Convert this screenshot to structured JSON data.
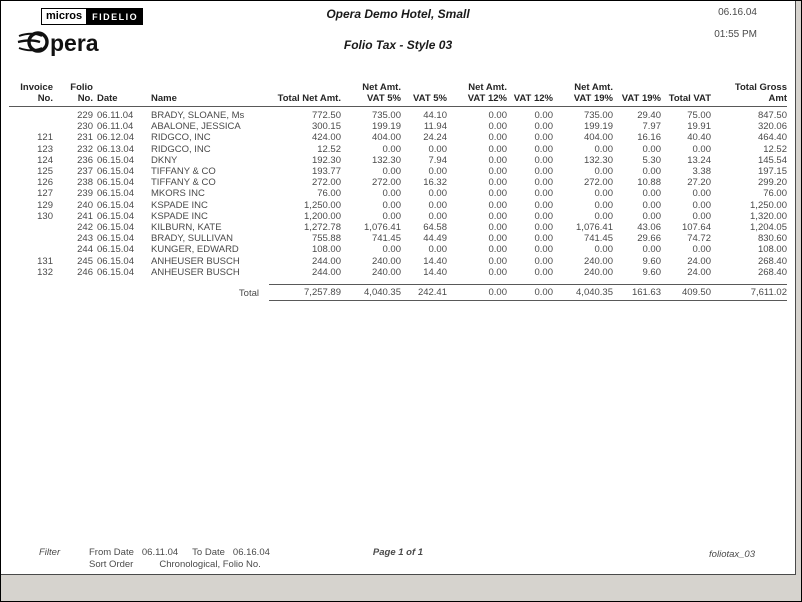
{
  "window": {
    "background": "#d6d3ce"
  },
  "header": {
    "logo": {
      "micros": "micros",
      "fidelio": "FIDELIO",
      "opera_text": "pera"
    },
    "hotel_name": "Opera Demo Hotel, Small",
    "report_title": "Folio Tax - Style 03",
    "date": "06.16.04",
    "time": "01:55 PM"
  },
  "table": {
    "columns": [
      {
        "top": "",
        "label": "Invoice No."
      },
      {
        "top": "",
        "label": "Folio No."
      },
      {
        "top": "",
        "label": "Date"
      },
      {
        "top": "",
        "label": "Name"
      },
      {
        "top": "",
        "label": "Total Net Amt."
      },
      {
        "top": "Net Amt.",
        "label": "VAT 5%"
      },
      {
        "top": "",
        "label": "VAT 5%"
      },
      {
        "top": "Net Amt.",
        "label": "VAT 12%"
      },
      {
        "top": "",
        "label": "VAT 12%"
      },
      {
        "top": "Net Amt.",
        "label": "VAT 19%"
      },
      {
        "top": "",
        "label": "VAT 19%"
      },
      {
        "top": "",
        "label": "Total VAT"
      },
      {
        "top": "",
        "label": "Total Gross Amt"
      }
    ],
    "rows": [
      [
        "",
        "229",
        "06.11.04",
        "BRADY, SLOANE, Ms",
        "772.50",
        "735.00",
        "44.10",
        "0.00",
        "0.00",
        "735.00",
        "29.40",
        "75.00",
        "847.50"
      ],
      [
        "",
        "230",
        "06.11.04",
        "ABALONE, JESSICA",
        "300.15",
        "199.19",
        "11.94",
        "0.00",
        "0.00",
        "199.19",
        "7.97",
        "19.91",
        "320.06"
      ],
      [
        "121",
        "231",
        "06.12.04",
        "RIDGCO, INC",
        "424.00",
        "404.00",
        "24.24",
        "0.00",
        "0.00",
        "404.00",
        "16.16",
        "40.40",
        "464.40"
      ],
      [
        "123",
        "232",
        "06.13.04",
        "RIDGCO, INC",
        "12.52",
        "0.00",
        "0.00",
        "0.00",
        "0.00",
        "0.00",
        "0.00",
        "0.00",
        "12.52"
      ],
      [
        "124",
        "236",
        "06.15.04",
        "DKNY",
        "192.30",
        "132.30",
        "7.94",
        "0.00",
        "0.00",
        "132.30",
        "5.30",
        "13.24",
        "145.54"
      ],
      [
        "125",
        "237",
        "06.15.04",
        "TIFFANY & CO",
        "193.77",
        "0.00",
        "0.00",
        "0.00",
        "0.00",
        "0.00",
        "0.00",
        "3.38",
        "197.15"
      ],
      [
        "126",
        "238",
        "06.15.04",
        "TIFFANY & CO",
        "272.00",
        "272.00",
        "16.32",
        "0.00",
        "0.00",
        "272.00",
        "10.88",
        "27.20",
        "299.20"
      ],
      [
        "127",
        "239",
        "06.15.04",
        "MKORS INC",
        "76.00",
        "0.00",
        "0.00",
        "0.00",
        "0.00",
        "0.00",
        "0.00",
        "0.00",
        "76.00"
      ],
      [
        "129",
        "240",
        "06.15.04",
        "KSPADE INC",
        "1,250.00",
        "0.00",
        "0.00",
        "0.00",
        "0.00",
        "0.00",
        "0.00",
        "0.00",
        "1,250.00"
      ],
      [
        "130",
        "241",
        "06.15.04",
        "KSPADE INC",
        "1,200.00",
        "0.00",
        "0.00",
        "0.00",
        "0.00",
        "0.00",
        "0.00",
        "0.00",
        "1,320.00"
      ],
      [
        "",
        "242",
        "06.15.04",
        "KILBURN, KATE",
        "1,272.78",
        "1,076.41",
        "64.58",
        "0.00",
        "0.00",
        "1,076.41",
        "43.06",
        "107.64",
        "1,204.05"
      ],
      [
        "",
        "243",
        "06.15.04",
        "BRADY, SULLIVAN",
        "755.88",
        "741.45",
        "44.49",
        "0.00",
        "0.00",
        "741.45",
        "29.66",
        "74.72",
        "830.60"
      ],
      [
        "",
        "244",
        "06.15.04",
        "KUNGER, EDWARD",
        "108.00",
        "0.00",
        "0.00",
        "0.00",
        "0.00",
        "0.00",
        "0.00",
        "0.00",
        "108.00"
      ],
      [
        "131",
        "245",
        "06.15.04",
        "ANHEUSER BUSCH",
        "244.00",
        "240.00",
        "14.40",
        "0.00",
        "0.00",
        "240.00",
        "9.60",
        "24.00",
        "268.40"
      ],
      [
        "132",
        "246",
        "06.15.04",
        "ANHEUSER BUSCH",
        "244.00",
        "240.00",
        "14.40",
        "0.00",
        "0.00",
        "240.00",
        "9.60",
        "24.00",
        "268.40"
      ]
    ],
    "total_label": "Total",
    "total": [
      "7,257.89",
      "4,040.35",
      "242.41",
      "0.00",
      "0.00",
      "4,040.35",
      "161.63",
      "409.50",
      "7,611.02"
    ]
  },
  "footer": {
    "filter_label": "Filter",
    "from_label": "From Date",
    "from_date": "06.11.04",
    "to_label": "To Date",
    "to_date": "06.16.04",
    "sort_label": "Sort Order",
    "sort_value": "Chronological, Folio No.",
    "page_info": "Page 1 of 1",
    "report_id": "foliotax_03"
  }
}
